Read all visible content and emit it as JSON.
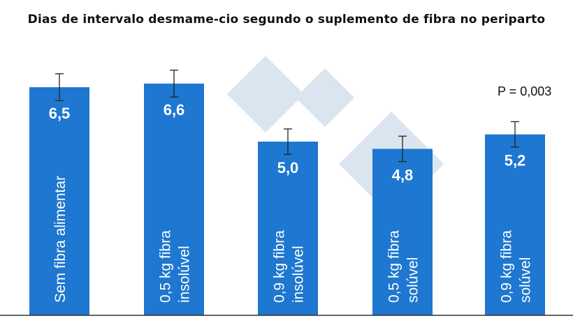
{
  "chart_data": {
    "type": "bar",
    "title": "Dias de intervalo desmame-cio segundo o suplemento de fibra no periparto",
    "categories": [
      [
        "Sem fibra alimentar"
      ],
      [
        "0,5 kg fibra",
        "insolúvel"
      ],
      [
        "0,9 kg fibra",
        "insolúvel"
      ],
      [
        "0,5 kg fibra",
        "solúvel"
      ],
      [
        "0,9 kg fibra",
        "solúvel"
      ]
    ],
    "values": [
      6.5,
      6.6,
      5.0,
      4.8,
      5.2
    ],
    "value_labels": [
      "6,5",
      "6,6",
      "5,0",
      "4,8",
      "5,2"
    ],
    "error": [
      0.37,
      0.37,
      0.35,
      0.35,
      0.35
    ],
    "annotation": "P = 0,003",
    "ylim": [
      0,
      8.9
    ],
    "grid": false,
    "bar_color": "#1e77d0",
    "watermark_color": "#dbe5ef"
  }
}
